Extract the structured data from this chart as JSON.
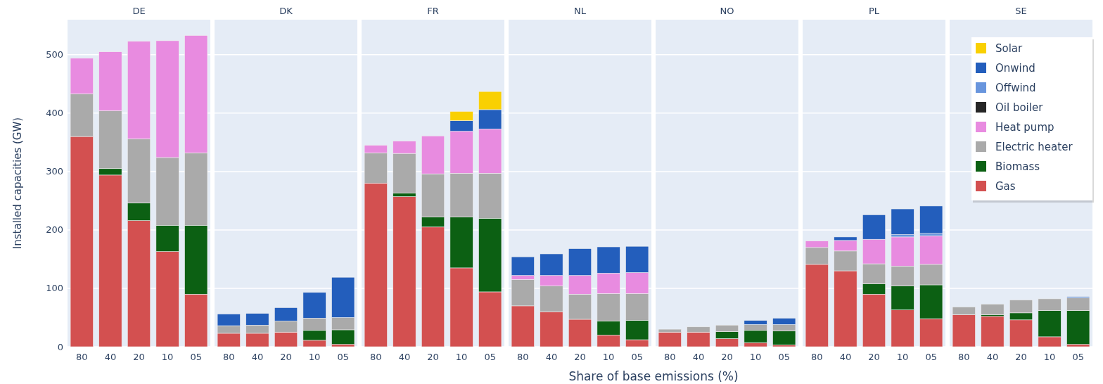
{
  "chart_data": [
    {
      "type": "bar",
      "title": "DE",
      "ylabel": "Installed capacities (GW)",
      "categories": [
        "80",
        "40",
        "20",
        "10",
        "05"
      ],
      "stacked": true,
      "grid": "y",
      "ylim": [
        0,
        560
      ],
      "yticks": [
        0,
        100,
        200,
        300,
        400,
        500
      ],
      "series": [
        {
          "color": "#d35050",
          "values": [
            360,
            294,
            216,
            163,
            90
          ]
        },
        {
          "color": "#0c6013",
          "values": [
            0,
            11,
            30,
            45,
            118
          ]
        },
        {
          "color": "#aaaaaa",
          "values": [
            73,
            99,
            110,
            116,
            124
          ]
        },
        {
          "color": "#e88be0",
          "values": [
            61,
            101,
            167,
            200,
            201
          ]
        }
      ]
    },
    {
      "type": "bar",
      "title": "DK",
      "categories": [
        "80",
        "40",
        "20",
        "10",
        "05"
      ],
      "stacked": true,
      "grid": "y",
      "tick_labels": "x",
      "ylim": [
        0,
        560
      ],
      "yticks": [
        0,
        100,
        200,
        300,
        400,
        500
      ],
      "series": [
        {
          "color": "#d35050",
          "values": [
            23,
            23,
            25,
            11,
            4
          ]
        },
        {
          "color": "#0c6013",
          "values": [
            0,
            0,
            0,
            17,
            25
          ]
        },
        {
          "color": "#aaaaaa",
          "values": [
            13,
            14,
            19,
            21,
            21
          ]
        },
        {
          "color": "#235ebc",
          "values": [
            20,
            20,
            23,
            44,
            69
          ]
        }
      ]
    },
    {
      "type": "bar",
      "title": "FR",
      "categories": [
        "80",
        "40",
        "20",
        "10",
        "05"
      ],
      "stacked": true,
      "grid": "y",
      "tick_labels": "x",
      "ylim": [
        0,
        560
      ],
      "yticks": [
        0,
        100,
        200,
        300,
        400,
        500
      ],
      "series": [
        {
          "color": "#d35050",
          "values": [
            280,
            257,
            205,
            135,
            94
          ]
        },
        {
          "color": "#0c6013",
          "values": [
            0,
            6,
            17,
            87,
            126
          ]
        },
        {
          "color": "#aaaaaa",
          "values": [
            52,
            68,
            74,
            75,
            77
          ]
        },
        {
          "color": "#e88be0",
          "values": [
            13,
            21,
            65,
            72,
            76
          ]
        },
        {
          "color": "#235ebc",
          "values": [
            0,
            0,
            0,
            18,
            33
          ]
        },
        {
          "color": "#f9d002",
          "values": [
            0,
            0,
            0,
            16,
            31
          ]
        }
      ]
    },
    {
      "type": "bar",
      "title": "NL",
      "xlabel": "Share of base emissions (%)",
      "categories": [
        "80",
        "40",
        "20",
        "10",
        "05"
      ],
      "stacked": true,
      "grid": "y",
      "tick_labels": "x",
      "ylim": [
        0,
        560
      ],
      "yticks": [
        0,
        100,
        200,
        300,
        400,
        500
      ],
      "series": [
        {
          "color": "#d35050",
          "values": [
            70,
            60,
            47,
            20,
            12
          ]
        },
        {
          "color": "#0c6013",
          "values": [
            0,
            0,
            0,
            24,
            33
          ]
        },
        {
          "color": "#aaaaaa",
          "values": [
            45,
            44,
            43,
            47,
            46
          ]
        },
        {
          "color": "#e88be0",
          "values": [
            7,
            18,
            32,
            35,
            36
          ]
        },
        {
          "color": "#235ebc",
          "values": [
            32,
            37,
            46,
            45,
            45
          ]
        }
      ]
    },
    {
      "type": "bar",
      "title": "NO",
      "categories": [
        "80",
        "40",
        "20",
        "10",
        "05"
      ],
      "stacked": true,
      "grid": "y",
      "tick_labels": "x",
      "ylim": [
        0,
        560
      ],
      "yticks": [
        0,
        100,
        200,
        300,
        400,
        500
      ],
      "series": [
        {
          "color": "#d35050",
          "values": [
            25,
            25,
            14,
            7,
            3
          ]
        },
        {
          "color": "#0c6013",
          "values": [
            0,
            0,
            12,
            21,
            24
          ]
        },
        {
          "color": "#aaaaaa",
          "values": [
            5,
            9,
            11,
            10,
            11
          ]
        },
        {
          "color": "#235ebc",
          "values": [
            0,
            0,
            0,
            7,
            11
          ]
        }
      ]
    },
    {
      "type": "bar",
      "title": "PL",
      "categories": [
        "80",
        "40",
        "20",
        "10",
        "05"
      ],
      "stacked": true,
      "grid": "y",
      "tick_labels": "x",
      "ylim": [
        0,
        560
      ],
      "yticks": [
        0,
        100,
        200,
        300,
        400,
        500
      ],
      "series": [
        {
          "color": "#d35050",
          "values": [
            141,
            130,
            90,
            63,
            48
          ]
        },
        {
          "color": "#0c6013",
          "values": [
            0,
            0,
            18,
            41,
            58
          ]
        },
        {
          "color": "#aaaaaa",
          "values": [
            29,
            34,
            34,
            34,
            35
          ]
        },
        {
          "color": "#e88be0",
          "values": [
            11,
            18,
            42,
            50,
            49
          ]
        },
        {
          "color": "#6895dd",
          "values": [
            0,
            0,
            0,
            4,
            4
          ]
        },
        {
          "color": "#235ebc",
          "values": [
            0,
            6,
            42,
            44,
            47
          ]
        }
      ]
    },
    {
      "type": "bar",
      "title": "SE",
      "categories": [
        "80",
        "40",
        "20",
        "10",
        "05"
      ],
      "stacked": true,
      "grid": "y",
      "tick_labels": "x",
      "legend": "top right",
      "ylim": [
        0,
        560
      ],
      "yticks": [
        0,
        100,
        200,
        300,
        400,
        500
      ],
      "series": [
        {
          "name": "Gas",
          "color": "#d35050",
          "values": [
            55,
            52,
            46,
            17,
            4
          ]
        },
        {
          "name": "Biomass",
          "color": "#0c6013",
          "values": [
            0,
            3,
            12,
            45,
            58
          ]
        },
        {
          "name": "Electric heater",
          "color": "#aaaaaa",
          "values": [
            13,
            18,
            22,
            20,
            22
          ]
        },
        {
          "name": "Heat pump",
          "color": "#e88be0",
          "values": [
            0,
            0,
            0,
            0,
            0
          ]
        },
        {
          "name": "Oil boiler",
          "color": "#262626",
          "values": [
            0,
            0,
            0,
            0,
            0
          ]
        },
        {
          "name": "Offwind",
          "color": "#6895dd",
          "values": [
            0,
            0,
            0,
            0,
            2
          ]
        },
        {
          "name": "Onwind",
          "color": "#235ebc",
          "values": [
            0,
            0,
            0,
            0,
            0
          ]
        },
        {
          "name": "Solar",
          "color": "#f9d002",
          "values": [
            0,
            0,
            0,
            0,
            0
          ]
        }
      ]
    }
  ]
}
